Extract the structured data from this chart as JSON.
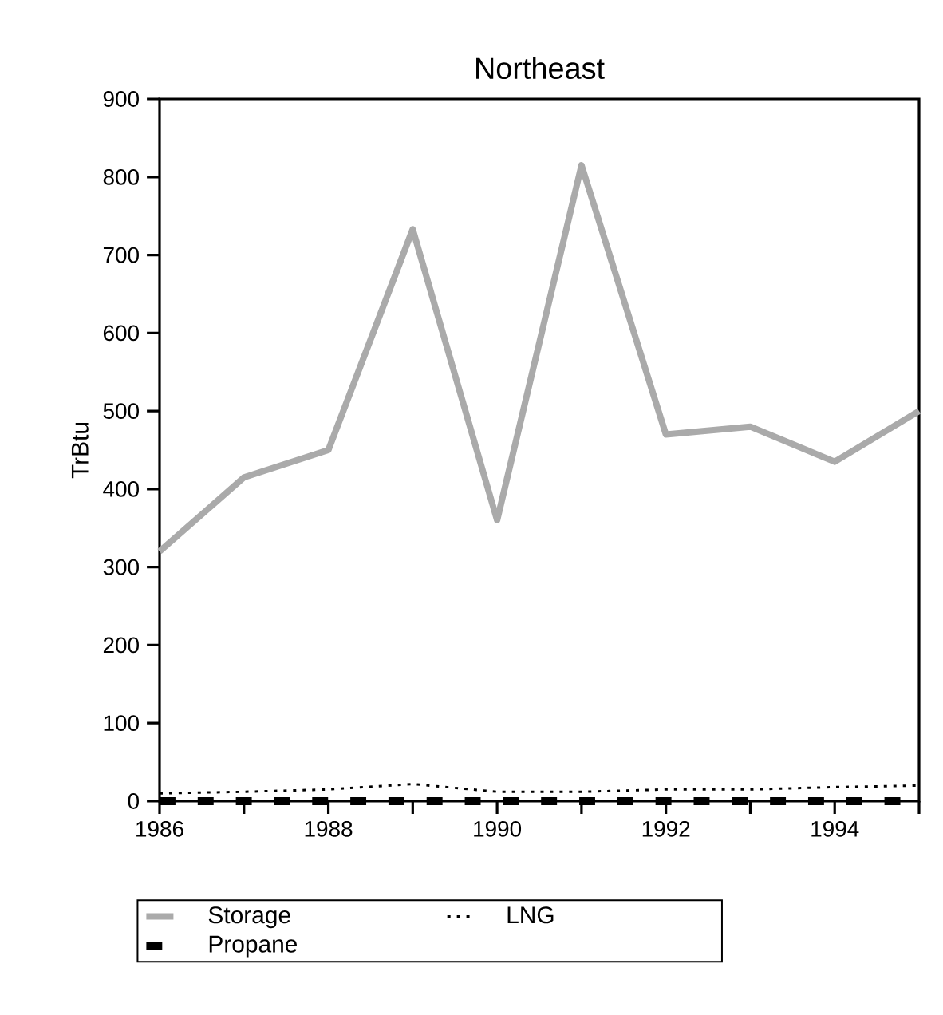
{
  "chart_data": {
    "type": "line",
    "title": "Northeast",
    "ylabel": "TrBtu",
    "x": [
      1986,
      1987,
      1988,
      1989,
      1990,
      1991,
      1992,
      1993,
      1994,
      1995
    ],
    "series": [
      {
        "name": "Storage",
        "color": "#aaaaaa",
        "line_style": "solid",
        "values": [
          320,
          415,
          450,
          733,
          360,
          815,
          470,
          480,
          435,
          500
        ]
      },
      {
        "name": "LNG",
        "color": "#000000",
        "line_style": "dotted",
        "values": [
          10,
          12,
          15,
          22,
          12,
          12,
          15,
          15,
          18,
          20
        ]
      },
      {
        "name": "Propane",
        "color": "#000000",
        "line_style": "dashed",
        "values": [
          0,
          0,
          0,
          0,
          0,
          0,
          0,
          0,
          0,
          0
        ]
      }
    ],
    "xlim": [
      1986,
      1995
    ],
    "xticks": [
      1986,
      {
        "value": 1987,
        "label": null
      },
      1988,
      {
        "value": 1989,
        "label": null
      },
      1990,
      {
        "value": 1991,
        "label": null
      },
      1992,
      {
        "value": 1993,
        "label": null
      },
      1994,
      {
        "value": 1995,
        "label": null
      }
    ],
    "ylim": [
      0,
      900
    ],
    "yticks": [
      0,
      100,
      200,
      300,
      400,
      500,
      600,
      700,
      800,
      900
    ],
    "grid": false,
    "legend": "bottom",
    "marker": "none"
  }
}
